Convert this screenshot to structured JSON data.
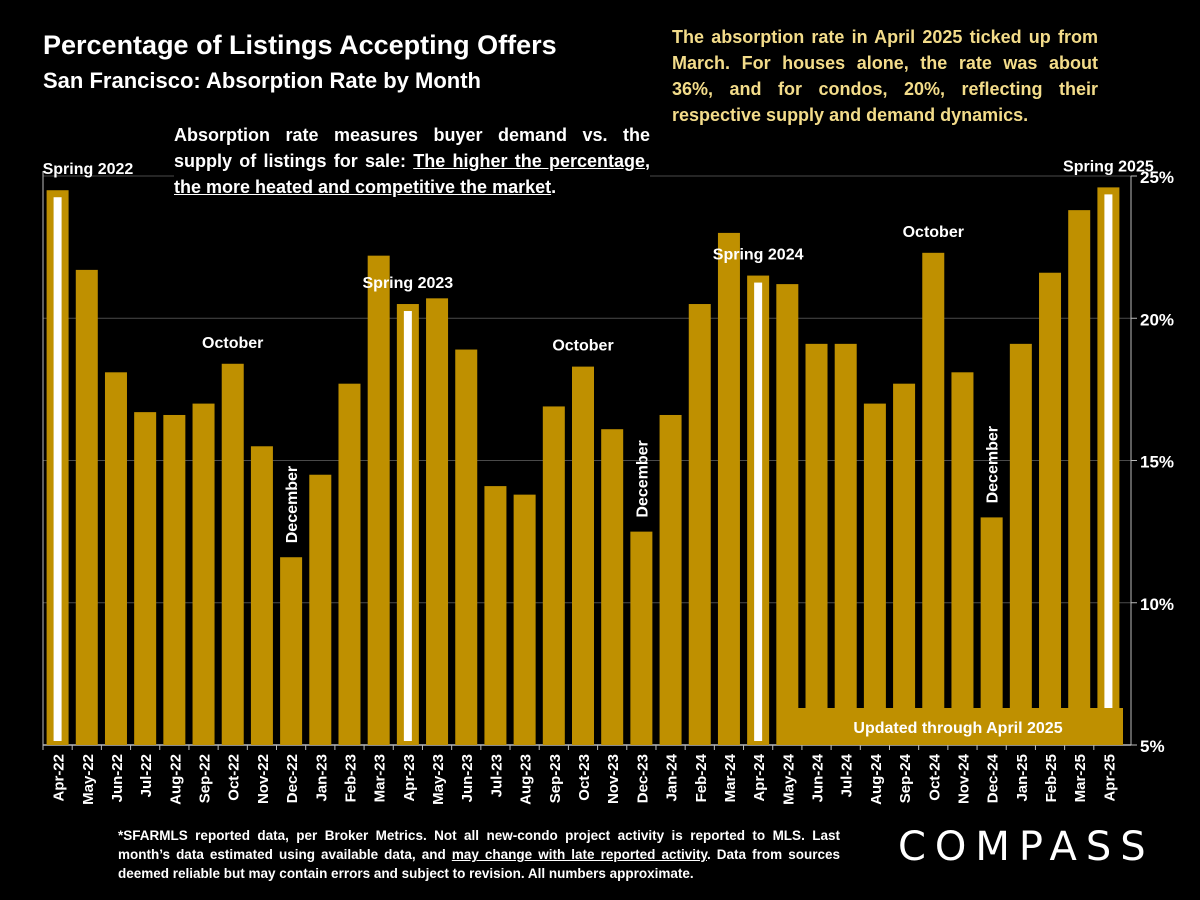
{
  "header": {
    "title": "Percentage of Listings Accepting Offers",
    "subtitle": "San Francisco:  Absorption Rate by Month"
  },
  "summary_text": "The absorption rate in April 2025 ticked up from March. For houses alone, the rate was about 36%, and for condos, 20%, reflecting their respective supply and demand dynamics.",
  "explanation": {
    "lead": "Absorption rate measures buyer demand vs. the supply of listings for sale: ",
    "emphasis": "The higher the percentage, the more heated and competitive the market",
    "end": "."
  },
  "footnote": {
    "part1": "*SFARMLS reported data, per Broker Metrics. Not all new-condo project activity is reported to MLS. Last month’s data estimated using available data, and ",
    "underlined": "may change with late reported activity",
    "part2": ". Data from sources deemed reliable but may contain errors and subject to revision. All numbers approximate."
  },
  "logo_text": "COMPASS",
  "chart_data": {
    "type": "bar",
    "title": "Percentage of Listings Accepting Offers",
    "subtitle": "San Francisco:  Absorption Rate by Month",
    "xlabel": "",
    "ylabel": "",
    "ylim": [
      5,
      25
    ],
    "yticks": [
      5,
      10,
      15,
      20,
      25
    ],
    "ytick_labels": [
      "5%",
      "10%",
      "15%",
      "20%",
      "25%"
    ],
    "y_axis_side": "right",
    "grid": true,
    "bar_color": "#bf9000",
    "highlight_color": "#ffffff",
    "categories": [
      "Apr-22",
      "May-22",
      "Jun-22",
      "Jul-22",
      "Aug-22",
      "Sep-22",
      "Oct-22",
      "Nov-22",
      "Dec-22",
      "Jan-23",
      "Feb-23",
      "Mar-23",
      "Apr-23",
      "May-23",
      "Jun-23",
      "Jul-23",
      "Aug-23",
      "Sep-23",
      "Oct-23",
      "Nov-23",
      "Dec-23",
      "Jan-24",
      "Feb-24",
      "Mar-24",
      "Apr-24",
      "May-24",
      "Jun-24",
      "Jul-24",
      "Aug-24",
      "Sep-24",
      "Oct-24",
      "Nov-24",
      "Dec-24",
      "Jan-25",
      "Feb-25",
      "Mar-25",
      "Apr-25"
    ],
    "values": [
      24.5,
      21.7,
      18.1,
      16.7,
      16.6,
      17.0,
      18.4,
      15.5,
      11.6,
      14.5,
      17.7,
      22.2,
      20.5,
      20.7,
      18.9,
      14.1,
      13.8,
      16.9,
      18.3,
      16.1,
      12.5,
      16.6,
      20.5,
      23.0,
      21.5,
      21.2,
      19.1,
      19.1,
      17.0,
      17.7,
      22.3,
      18.1,
      13.0,
      19.1,
      21.6,
      23.8,
      24.6
    ],
    "highlighted": [
      "Apr-22",
      "Apr-23",
      "Apr-24",
      "Apr-25"
    ],
    "annotations": [
      {
        "label": "Spring 2022",
        "category": "Apr-22",
        "orientation": "horizontal"
      },
      {
        "label": "October",
        "category": "Oct-22",
        "orientation": "horizontal"
      },
      {
        "label": "December",
        "category": "Dec-22",
        "orientation": "vertical"
      },
      {
        "label": "Spring 2023",
        "category": "Apr-23",
        "orientation": "horizontal"
      },
      {
        "label": "October",
        "category": "Oct-23",
        "orientation": "horizontal"
      },
      {
        "label": "December",
        "category": "Dec-23",
        "orientation": "vertical"
      },
      {
        "label": "Spring 2024",
        "category": "Apr-24",
        "orientation": "horizontal"
      },
      {
        "label": "October",
        "category": "Oct-24",
        "orientation": "horizontal"
      },
      {
        "label": "December",
        "category": "Dec-24",
        "orientation": "vertical"
      },
      {
        "label": "Spring 2025",
        "category": "Apr-25",
        "orientation": "horizontal"
      }
    ],
    "updated_banner": "Updated through April 2025"
  }
}
